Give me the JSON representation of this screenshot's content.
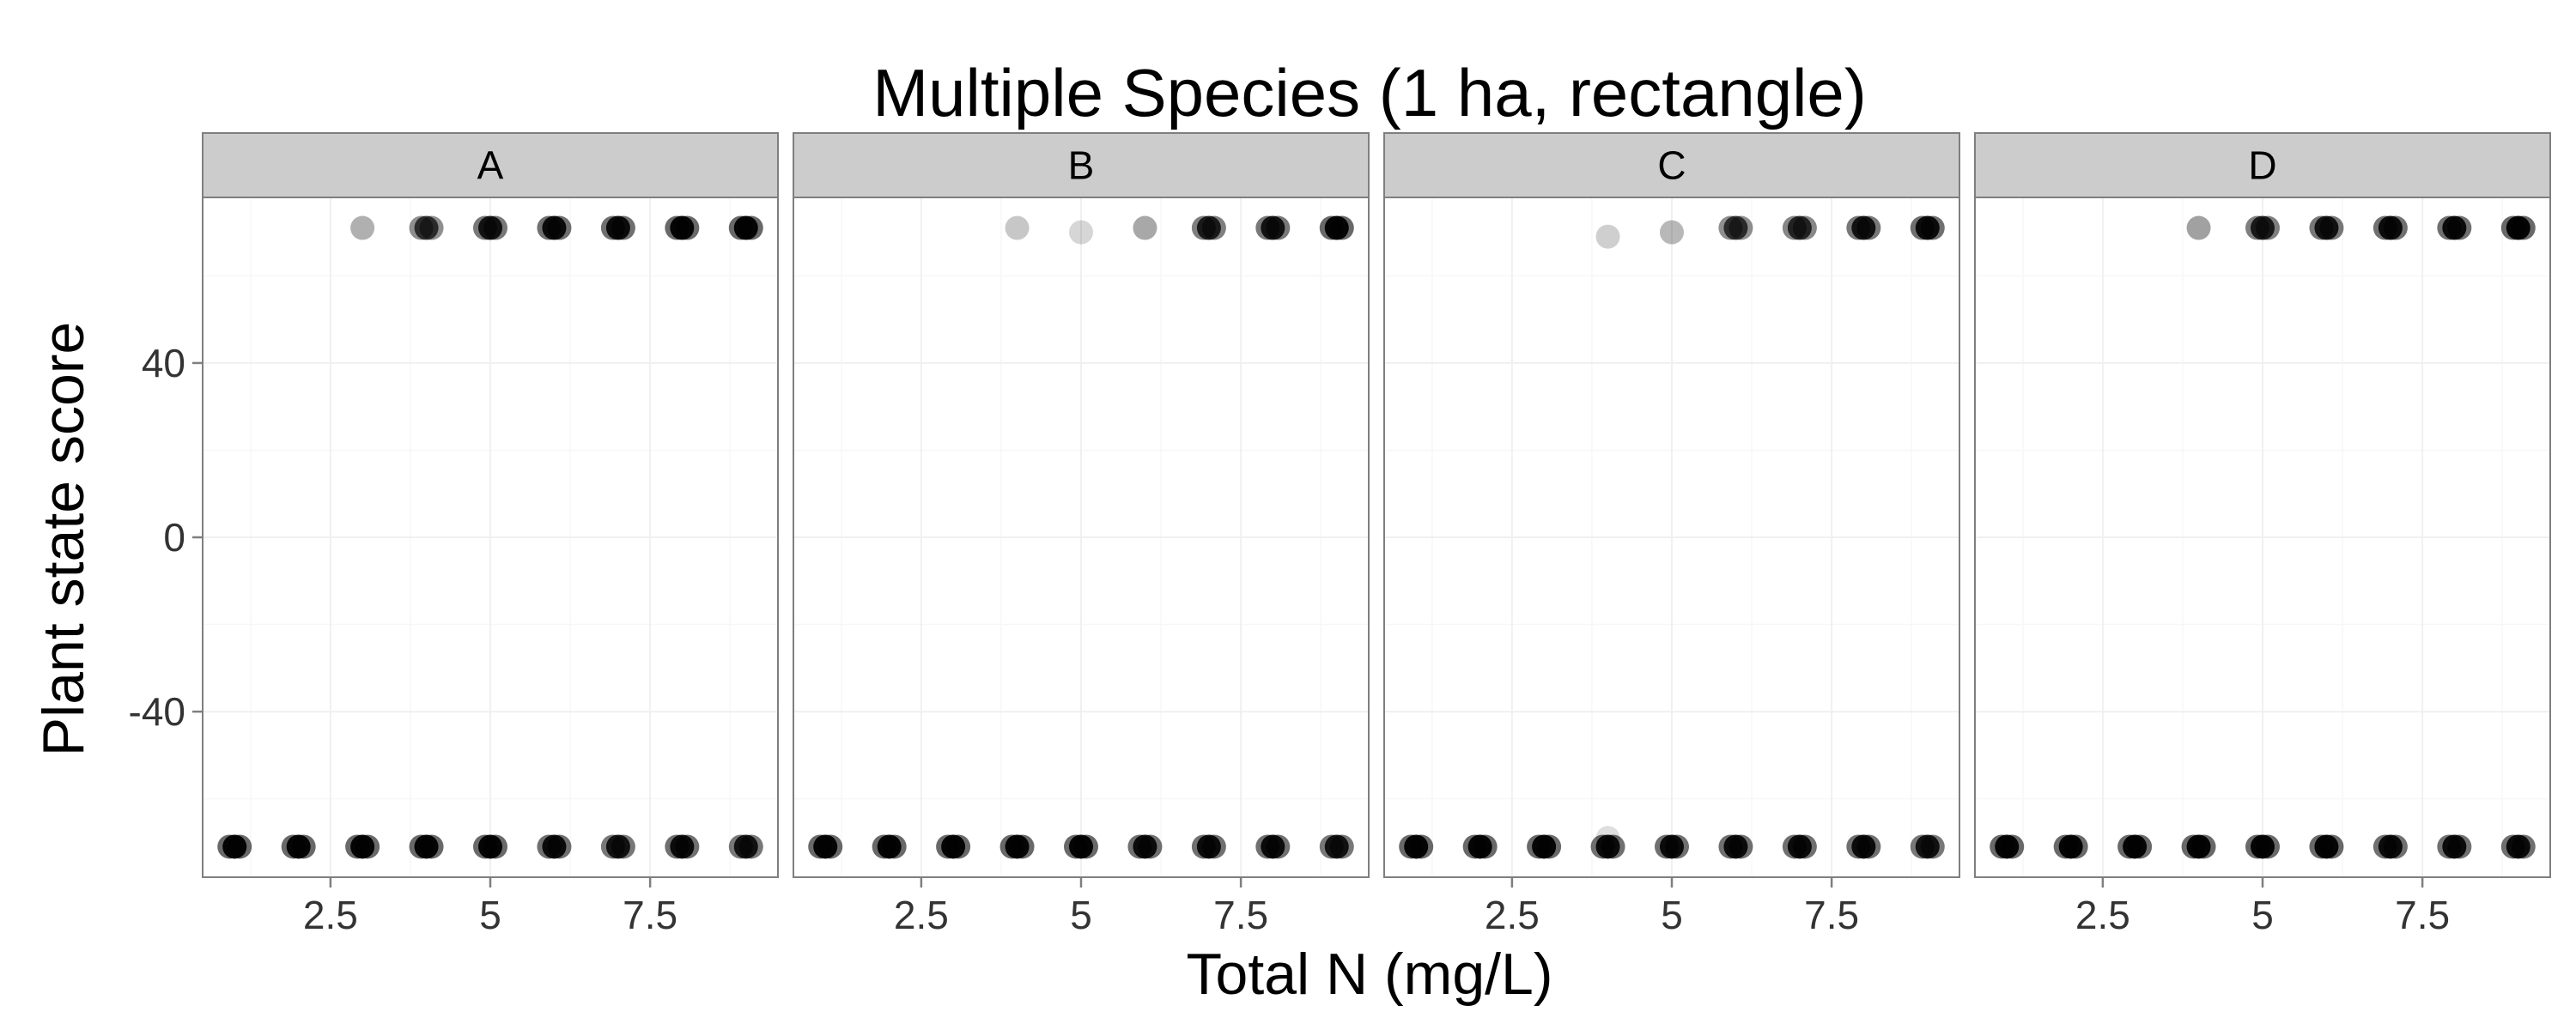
{
  "chart_data": {
    "type": "scatter",
    "title": "Multiple Species (1 ha, rectangle)",
    "xlabel": "Total N (mg/L)",
    "ylabel": "Plant state score",
    "xlim": [
      0.5,
      9.5
    ],
    "ylim": [
      -78,
      78
    ],
    "x_ticks": [
      2.5,
      5.0,
      7.5
    ],
    "y_ticks": [
      40,
      0,
      -40
    ],
    "grid": true,
    "point_color": "#000000",
    "facets": [
      {
        "label": "A",
        "points": [
          {
            "x": 1,
            "y": -71,
            "alpha": 0.95
          },
          {
            "x": 2,
            "y": -71,
            "alpha": 0.95
          },
          {
            "x": 3,
            "y": -71,
            "alpha": 0.95
          },
          {
            "x": 4,
            "y": -71,
            "alpha": 0.95
          },
          {
            "x": 5,
            "y": -71,
            "alpha": 0.95
          },
          {
            "x": 6,
            "y": -71,
            "alpha": 0.9
          },
          {
            "x": 7,
            "y": -71,
            "alpha": 0.85
          },
          {
            "x": 8,
            "y": -71,
            "alpha": 0.9
          },
          {
            "x": 9,
            "y": -71,
            "alpha": 0.85
          },
          {
            "x": 3,
            "y": 71,
            "alpha": 0.5
          },
          {
            "x": 4,
            "y": 71,
            "alpha": 0.7
          },
          {
            "x": 5,
            "y": 71,
            "alpha": 0.85
          },
          {
            "x": 6,
            "y": 71,
            "alpha": 0.9
          },
          {
            "x": 7,
            "y": 71,
            "alpha": 0.9
          },
          {
            "x": 8,
            "y": 71,
            "alpha": 0.95
          },
          {
            "x": 9,
            "y": 71,
            "alpha": 0.95
          }
        ]
      },
      {
        "label": "B",
        "points": [
          {
            "x": 1,
            "y": -71,
            "alpha": 0.95
          },
          {
            "x": 2,
            "y": -71,
            "alpha": 0.95
          },
          {
            "x": 3,
            "y": -71,
            "alpha": 0.95
          },
          {
            "x": 4,
            "y": -71,
            "alpha": 0.95
          },
          {
            "x": 5,
            "y": -71,
            "alpha": 0.95
          },
          {
            "x": 6,
            "y": -71,
            "alpha": 0.9
          },
          {
            "x": 7,
            "y": -71,
            "alpha": 0.9
          },
          {
            "x": 8,
            "y": -71,
            "alpha": 0.9
          },
          {
            "x": 9,
            "y": -71,
            "alpha": 0.85
          },
          {
            "x": 4,
            "y": 71,
            "alpha": 0.35
          },
          {
            "x": 5,
            "y": 70,
            "alpha": 0.25
          },
          {
            "x": 6,
            "y": 71,
            "alpha": 0.55
          },
          {
            "x": 7,
            "y": 71,
            "alpha": 0.8
          },
          {
            "x": 8,
            "y": 71,
            "alpha": 0.85
          },
          {
            "x": 9,
            "y": 71,
            "alpha": 0.95
          }
        ]
      },
      {
        "label": "C",
        "points": [
          {
            "x": 1,
            "y": -71,
            "alpha": 0.95
          },
          {
            "x": 2,
            "y": -71,
            "alpha": 0.95
          },
          {
            "x": 3,
            "y": -71,
            "alpha": 0.95
          },
          {
            "x": 4,
            "y": -71,
            "alpha": 0.9
          },
          {
            "x": 4,
            "y": -69,
            "alpha": 0.2
          },
          {
            "x": 5,
            "y": -71,
            "alpha": 0.9
          },
          {
            "x": 6,
            "y": -71,
            "alpha": 0.9
          },
          {
            "x": 7,
            "y": -71,
            "alpha": 0.9
          },
          {
            "x": 8,
            "y": -71,
            "alpha": 0.9
          },
          {
            "x": 9,
            "y": -71,
            "alpha": 0.85
          },
          {
            "x": 4,
            "y": 69,
            "alpha": 0.3
          },
          {
            "x": 5,
            "y": 70,
            "alpha": 0.45
          },
          {
            "x": 6,
            "y": 71,
            "alpha": 0.7
          },
          {
            "x": 7,
            "y": 71,
            "alpha": 0.75
          },
          {
            "x": 8,
            "y": 71,
            "alpha": 0.85
          },
          {
            "x": 9,
            "y": 71,
            "alpha": 0.9
          }
        ]
      },
      {
        "label": "D",
        "points": [
          {
            "x": 1,
            "y": -71,
            "alpha": 0.95
          },
          {
            "x": 2,
            "y": -71,
            "alpha": 0.95
          },
          {
            "x": 3,
            "y": -71,
            "alpha": 0.95
          },
          {
            "x": 4,
            "y": -71,
            "alpha": 0.95
          },
          {
            "x": 5,
            "y": -71,
            "alpha": 0.95
          },
          {
            "x": 6,
            "y": -71,
            "alpha": 0.95
          },
          {
            "x": 7,
            "y": -71,
            "alpha": 0.9
          },
          {
            "x": 8,
            "y": -71,
            "alpha": 0.9
          },
          {
            "x": 9,
            "y": -71,
            "alpha": 0.9
          },
          {
            "x": 4,
            "y": 71,
            "alpha": 0.6
          },
          {
            "x": 5,
            "y": 71,
            "alpha": 0.8
          },
          {
            "x": 6,
            "y": 71,
            "alpha": 0.85
          },
          {
            "x": 7,
            "y": 71,
            "alpha": 0.9
          },
          {
            "x": 8,
            "y": 71,
            "alpha": 0.9
          },
          {
            "x": 9,
            "y": 71,
            "alpha": 0.95
          }
        ]
      }
    ]
  }
}
